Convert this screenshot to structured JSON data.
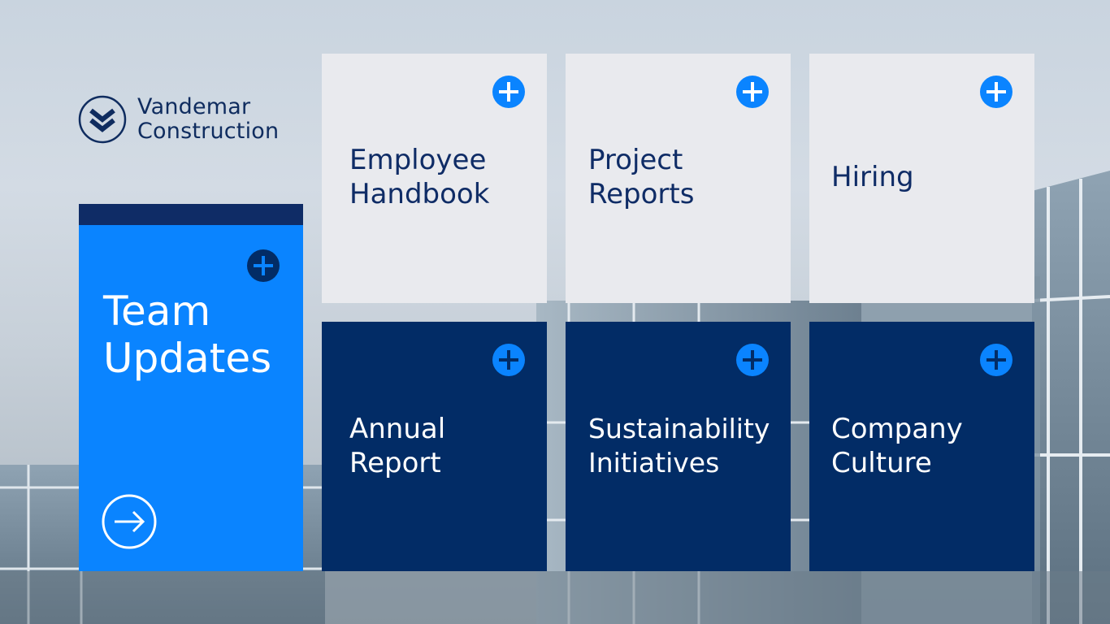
{
  "brand": {
    "line1": "Vandemar",
    "line2": "Construction"
  },
  "feature": {
    "title_line1": "Team",
    "title_line2": "Updates",
    "plus_icon": "plus-circle-icon",
    "arrow_icon": "arrow-right-circle-icon"
  },
  "tiles": [
    {
      "line1": "Employee",
      "line2": "Handbook",
      "theme": "light"
    },
    {
      "line1": "Project",
      "line2": "Reports",
      "theme": "light"
    },
    {
      "line1": "Hiring",
      "line2": "",
      "theme": "light"
    },
    {
      "line1": "Annual",
      "line2": "Report",
      "theme": "dark"
    },
    {
      "line1": "Sustainability",
      "line2": "Initiatives",
      "theme": "dark"
    },
    {
      "line1": "Company",
      "line2": "Culture",
      "theme": "dark"
    }
  ],
  "colors": {
    "navy": "#022c66",
    "accent_blue": "#0a84ff",
    "light_tile": "#e9eaee",
    "brand_text": "#0f2c5f"
  }
}
